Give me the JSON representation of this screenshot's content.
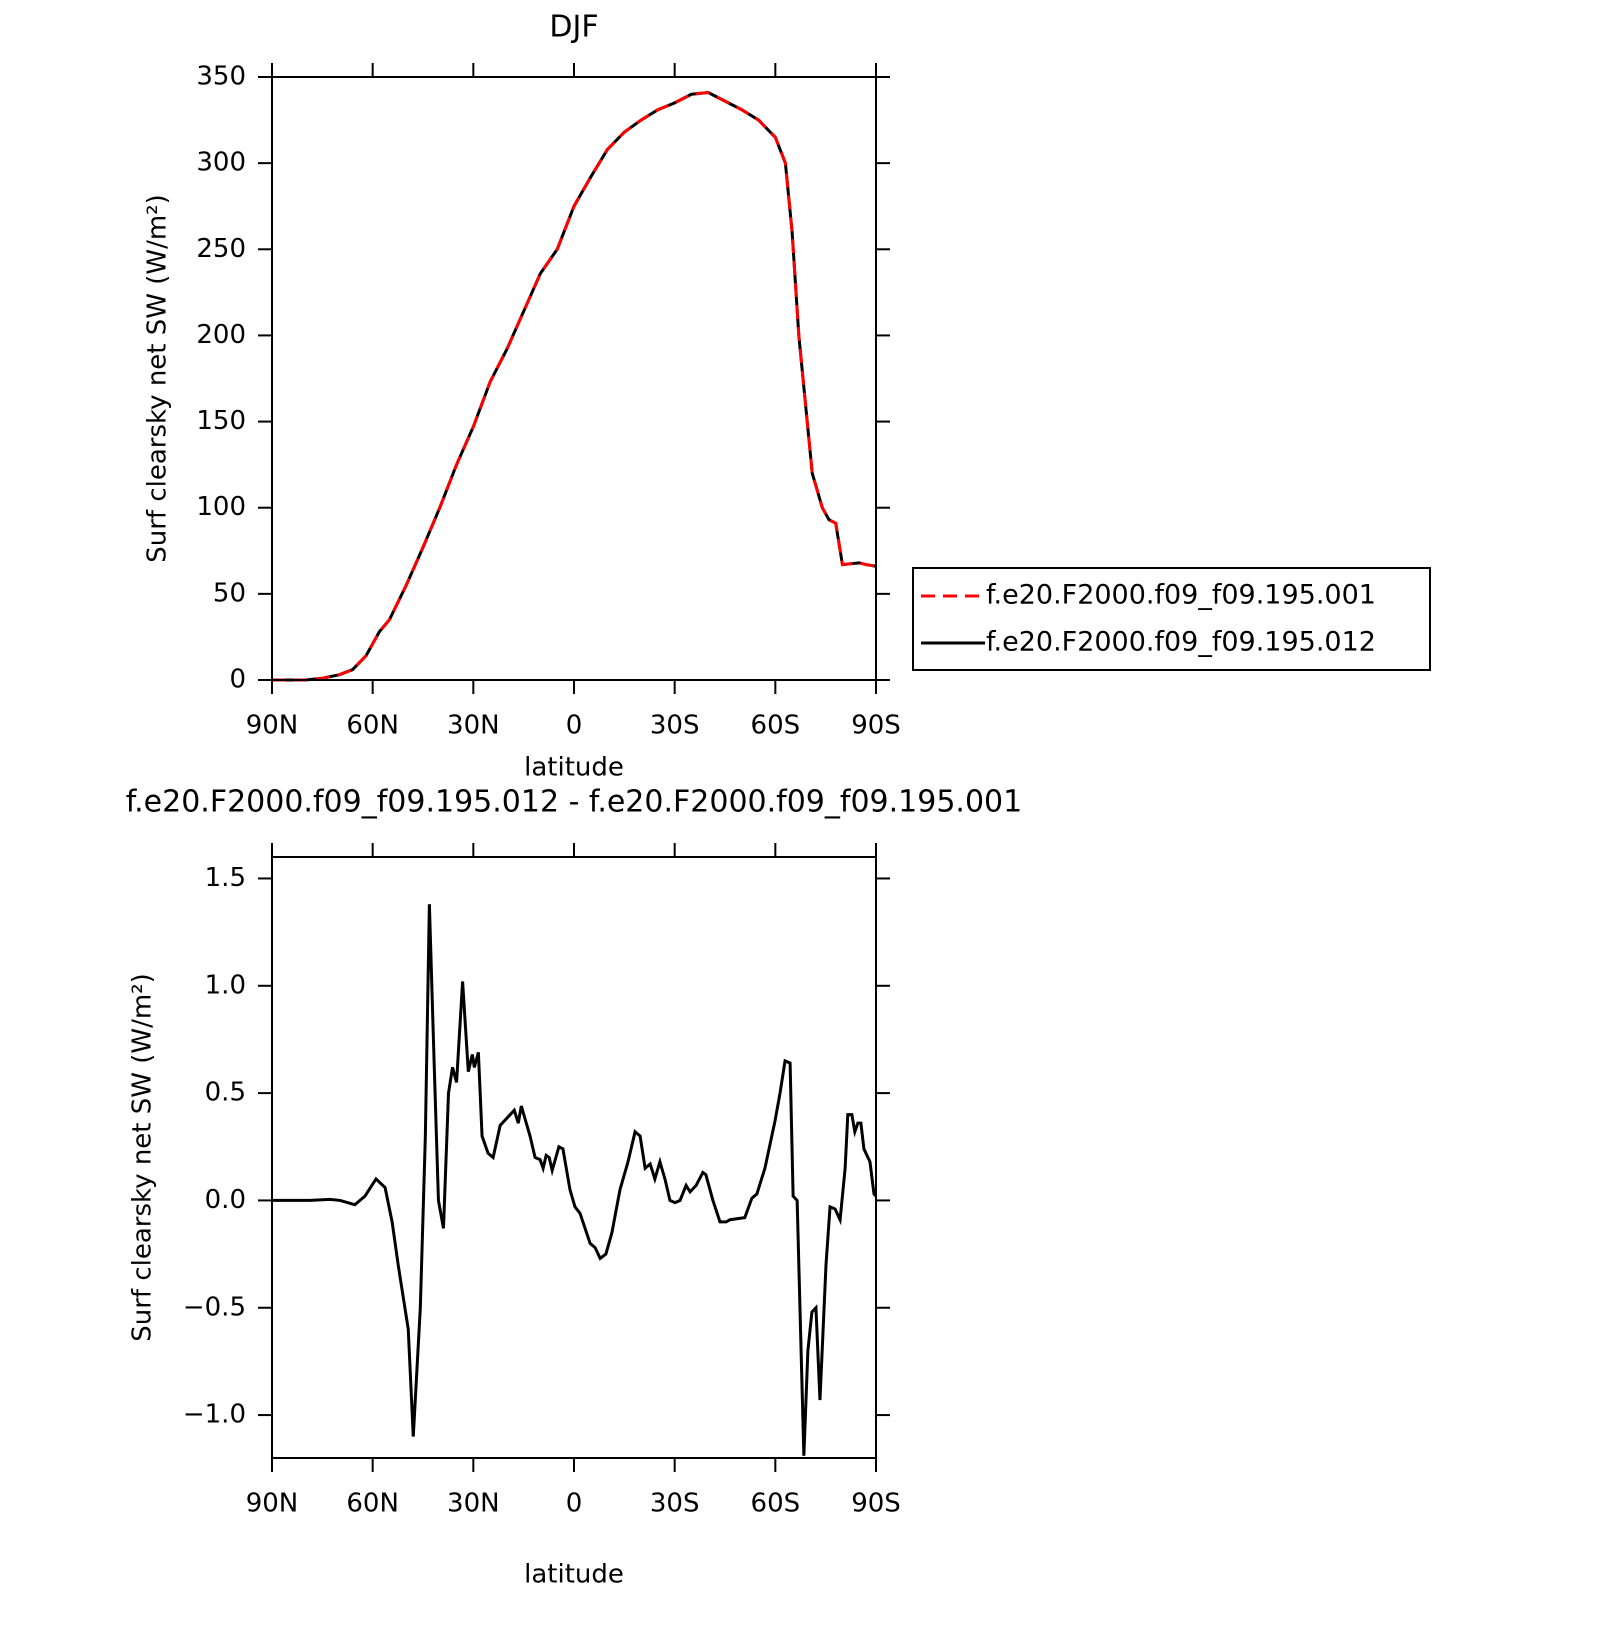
{
  "chart_data": [
    {
      "type": "line",
      "title": "DJF",
      "xlabel": "latitude",
      "ylabel": "Surf clearsky net SW (W/m²)",
      "x": [
        90,
        85,
        80,
        75,
        70,
        66,
        62,
        58,
        55,
        50,
        45,
        40,
        35,
        30,
        25,
        20,
        15,
        10,
        5,
        0,
        -5,
        -10,
        -15,
        -20,
        -25,
        -30,
        -35,
        -40,
        -45,
        -50,
        -55,
        -60,
        -63,
        -65,
        -67,
        -69,
        -71,
        -74,
        -76,
        -78,
        -80,
        -85,
        -87,
        -90
      ],
      "series": [
        {
          "name": "f.e20.F2000.f09_f09.195.012",
          "color": "#000000",
          "dash": false,
          "values": [
            0,
            0,
            0,
            1,
            3,
            6,
            14,
            28,
            35,
            55,
            77,
            100,
            125,
            147,
            173,
            192,
            214,
            236,
            250,
            275,
            292,
            308,
            318,
            325,
            331,
            335,
            340,
            341,
            336,
            331,
            325,
            315,
            300,
            260,
            200,
            160,
            120,
            100,
            93,
            91,
            67,
            68,
            67,
            66
          ]
        },
        {
          "name": "f.e20.F2000.f09_f09.195.001",
          "color": "#ff0000",
          "dash": true,
          "values": [
            0,
            0,
            0,
            1,
            3,
            6,
            14,
            28,
            35,
            55,
            77,
            100,
            125,
            147,
            173,
            192,
            214,
            236,
            250,
            275,
            292,
            308,
            318,
            325,
            331,
            335,
            340,
            341,
            336,
            331,
            325,
            315,
            300,
            260,
            200,
            160,
            120,
            100,
            93,
            91,
            67,
            68,
            67,
            66
          ]
        }
      ],
      "legend_order": [
        1,
        0
      ],
      "xlim": [
        90,
        -90
      ],
      "xticks": [
        {
          "value": 90,
          "label": "90N"
        },
        {
          "value": 60,
          "label": "60N"
        },
        {
          "value": 30,
          "label": "30N"
        },
        0,
        {
          "value": -30,
          "label": "30S"
        },
        {
          "value": -60,
          "label": "60S"
        },
        {
          "value": -90,
          "label": "90S"
        }
      ],
      "ylim": [
        0,
        350
      ],
      "yticks": [
        0,
        50,
        100,
        150,
        200,
        250,
        300,
        350
      ]
    },
    {
      "type": "line",
      "title": "f.e20.F2000.f09_f09.195.012 - f.e20.F2000.f09_f09.195.001",
      "xlabel": "latitude",
      "ylabel": "Surf clearsky net SW (W/m²)",
      "x": [
        90,
        78.7,
        72.7,
        69.7,
        65.3,
        62.3,
        59.0,
        56.3,
        54.2,
        52.4,
        51.2,
        49.4,
        47.9,
        45.8,
        44.3,
        43.1,
        41.6,
        40.4,
        38.9,
        37.4,
        36.2,
        35.0,
        33.2,
        31.5,
        30.3,
        29.7,
        28.5,
        27.4,
        25.6,
        24.1,
        22.0,
        19.0,
        17.8,
        16.6,
        15.7,
        13.1,
        11.6,
        10.1,
        9.2,
        8.3,
        7.4,
        6.5,
        4.5,
        3.3,
        1.2,
        -0.3,
        -1.8,
        -4.8,
        -6.3,
        -7.8,
        -9.5,
        -11.3,
        -13.7,
        -16.1,
        -18.2,
        -19.7,
        -21.2,
        -22.7,
        -24.1,
        -25.6,
        -27.1,
        -28.6,
        -30.1,
        -31.6,
        -33.4,
        -34.6,
        -36.4,
        -38.4,
        -39.3,
        -41.4,
        -43.5,
        -45.3,
        -46.5,
        -50.9,
        -53.0,
        -54.5,
        -56.9,
        -59.9,
        -61.4,
        -62.9,
        -64.4,
        -65.3,
        -66.5,
        -68.5,
        -69.7,
        -70.9,
        -72.1,
        -73.3,
        -75.1,
        -76.3,
        -77.8,
        -79.3,
        -80.8,
        -81.6,
        -82.8,
        -83.7,
        -84.6,
        -85.5,
        -86.4,
        -88.2,
        -89.4,
        -90
      ],
      "series": [
        {
          "color": "#000000",
          "dash": false,
          "values": [
            0,
            0,
            0.005,
            0,
            -0.02,
            0.02,
            0.1,
            0.06,
            -0.1,
            -0.3,
            -0.42,
            -0.6,
            -1.1,
            -0.5,
            0.3,
            1.38,
            0.6,
            0,
            -0.13,
            0.5,
            0.62,
            0.55,
            1.02,
            0.6,
            0.68,
            0.62,
            0.69,
            0.3,
            0.22,
            0.2,
            0.35,
            0.4,
            0.42,
            0.36,
            0.44,
            0.3,
            0.2,
            0.19,
            0.15,
            0.21,
            0.2,
            0.14,
            0.25,
            0.24,
            0.05,
            -0.03,
            -0.06,
            -0.2,
            -0.22,
            -0.27,
            -0.25,
            -0.15,
            0.05,
            0.18,
            0.32,
            0.3,
            0.15,
            0.17,
            0.1,
            0.18,
            0.1,
            0,
            -0.01,
            0,
            0.07,
            0.04,
            0.07,
            0.13,
            0.12,
            0,
            -0.1,
            -0.1,
            -0.09,
            -0.08,
            0.01,
            0.03,
            0.15,
            0.37,
            0.5,
            0.65,
            0.64,
            0.02,
            0,
            -1.19,
            -0.7,
            -0.52,
            -0.5,
            -0.93,
            -0.3,
            -0.03,
            -0.04,
            -0.09,
            0.15,
            0.4,
            0.4,
            0.32,
            0.36,
            0.36,
            0.24,
            0.18,
            0.03,
            0.02
          ]
        }
      ],
      "xlim": [
        90,
        -90
      ],
      "xticks": [
        {
          "value": 90,
          "label": "90N"
        },
        {
          "value": 60,
          "label": "60N"
        },
        {
          "value": 30,
          "label": "30N"
        },
        0,
        {
          "value": -30,
          "label": "30S"
        },
        {
          "value": -60,
          "label": "60S"
        },
        {
          "value": -90,
          "label": "90S"
        }
      ],
      "ylim": [
        -1.2,
        1.6
      ],
      "yticks": [
        {
          "value": -1,
          "label": "−1.0"
        },
        {
          "value": -0.5,
          "label": "−0.5"
        },
        {
          "value": 0,
          "label": "0.0"
        },
        0.5,
        {
          "value": 1,
          "label": "1.0"
        },
        1.5
      ]
    }
  ]
}
